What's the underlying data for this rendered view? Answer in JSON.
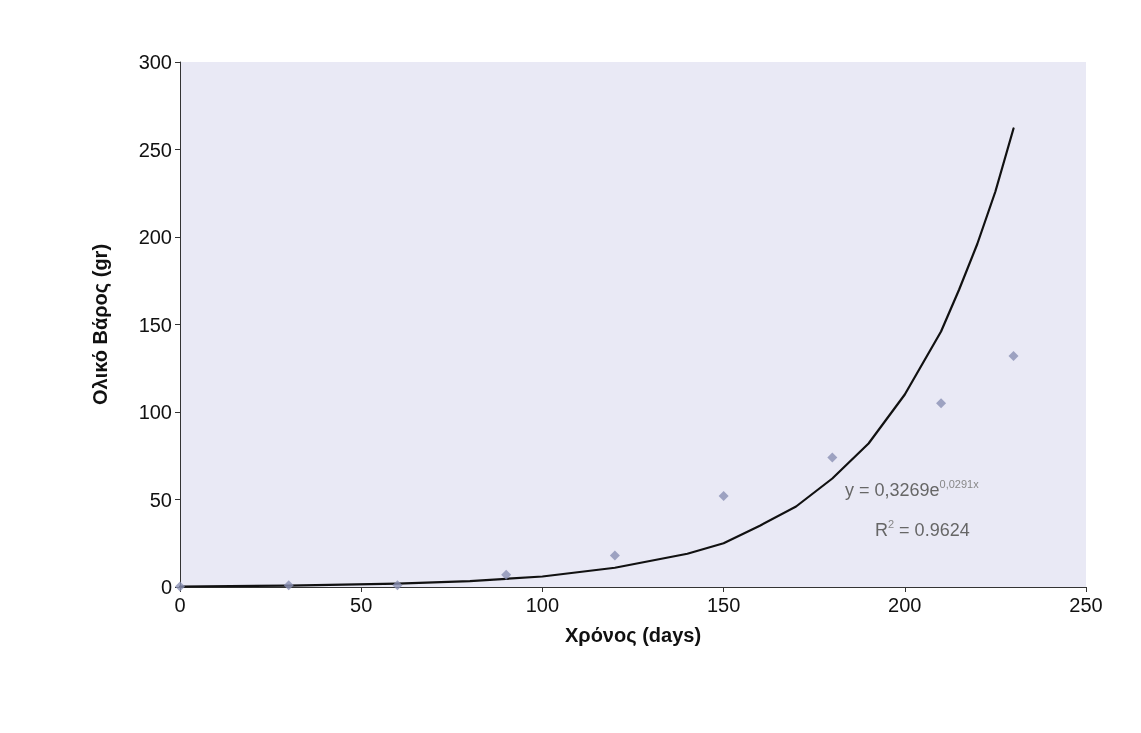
{
  "chart_data": {
    "type": "scatter",
    "xlabel": "Χρόνος (days)",
    "ylabel": "Ολικό Βάρος (gr)",
    "xlim": [
      0,
      250
    ],
    "xticks": [
      0,
      50,
      100,
      150,
      200,
      250
    ],
    "ylim": [
      0,
      300
    ],
    "yticks": [
      0,
      50,
      100,
      150,
      200,
      250,
      300
    ],
    "grid": false,
    "marker": "diamond",
    "series": [
      {
        "color": "#8a90b4",
        "x": [
          0,
          30,
          60,
          90,
          120,
          150,
          180,
          210,
          230
        ],
        "values": [
          0.3,
          1,
          1,
          7,
          18,
          52,
          74,
          105,
          132
        ]
      },
      {
        "type": "line",
        "color": "#111111",
        "marker": "none",
        "line_style": "solid",
        "x": [
          0,
          30,
          60,
          80,
          100,
          120,
          140,
          150,
          160,
          170,
          180,
          190,
          200,
          210,
          215,
          220,
          225,
          230
        ],
        "values": [
          0.3,
          0.8,
          1.9,
          3.4,
          6,
          11,
          19,
          25,
          35,
          46,
          62,
          82,
          110,
          146,
          170,
          196,
          226,
          262
        ]
      }
    ],
    "annotations": [
      "y = 0,3269e$^{0,0291x}$",
      "R$^{2}$ = 0.9624"
    ]
  }
}
